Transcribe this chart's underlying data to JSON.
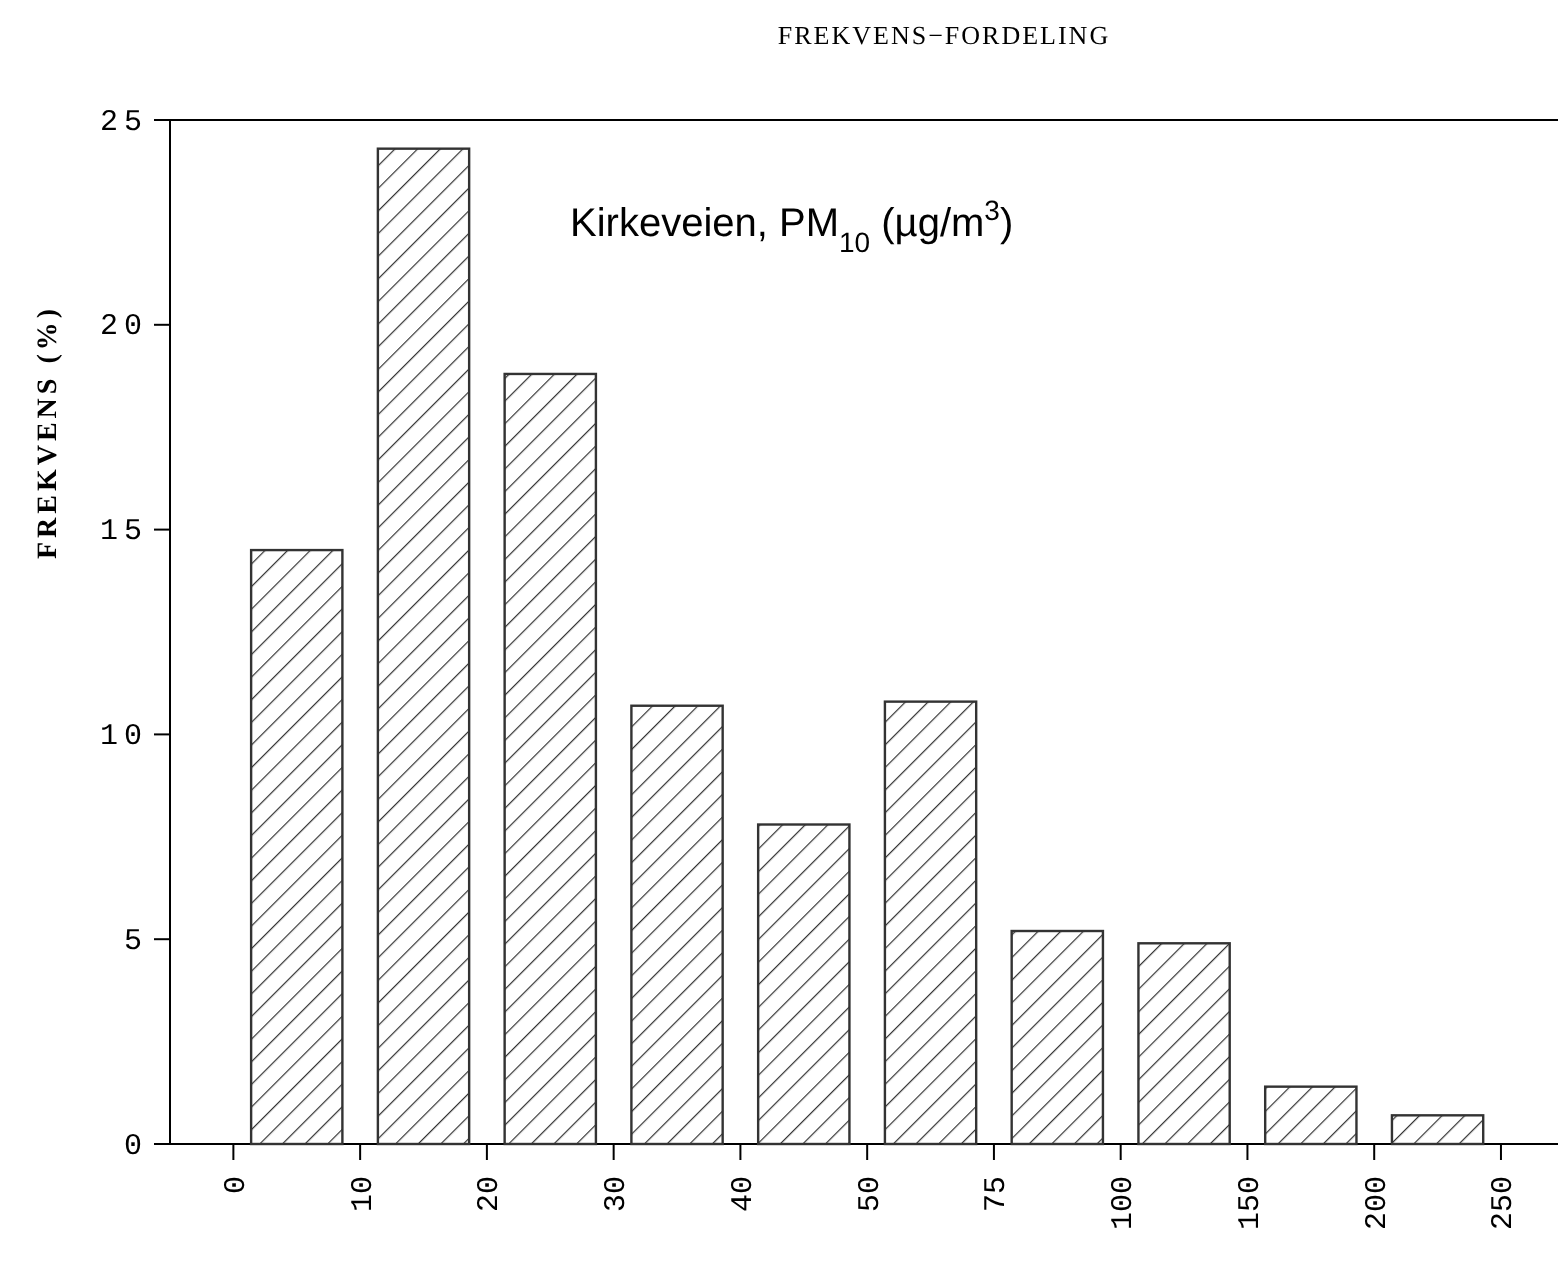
{
  "chart_data": {
    "type": "bar",
    "title": "FREKVENS−FORDELING",
    "ylabel": "FREKVENS (%)",
    "annotations": [
      "Kirkeveien, PM$_{10}$ (µg/m$^{3}$)",
      "0",
      "10",
      "20",
      "30",
      "40",
      "50",
      "75",
      "100",
      "150",
      "200",
      "250"
    ],
    "categories": [
      null,
      null,
      null,
      null,
      null,
      null,
      null,
      null,
      null,
      null
    ],
    "values": [
      14.5,
      24.3,
      18.8,
      10.7,
      7.8,
      10.8,
      5.2,
      4.9,
      1.4,
      0.7
    ],
    "color": "#333333",
    "ylim": [
      0,
      25
    ],
    "yticks": [
      0,
      5,
      10,
      15,
      20,
      25
    ]
  }
}
